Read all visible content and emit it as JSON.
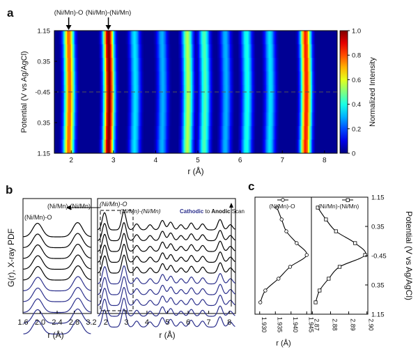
{
  "panel_labels": {
    "a": "a",
    "b": "b",
    "c": "c"
  },
  "chart_data": [
    {
      "panel": "a",
      "type": "heatmap",
      "xlabel": "r (Å)",
      "ylabel": "Potential (V vs Ag/AgCl)",
      "xlim": [
        1.6,
        8.3
      ],
      "x_ticks": [
        "2",
        "3",
        "4",
        "5",
        "6",
        "7",
        "8"
      ],
      "y_ticks": [
        "1.15",
        "0.35",
        "-0.45",
        "0.35",
        "1.15"
      ],
      "colorbar": {
        "label": "Normalized Intensity",
        "range": [
          0,
          1
        ],
        "ticks": [
          "1.0",
          "0.8",
          "0.6",
          "0.4",
          "0.2",
          "0"
        ]
      },
      "annotations": [
        {
          "text": "(Ni/Mn)-O",
          "x": 1.94
        },
        {
          "text": "(Ni/Mn)-(Ni/Mn)",
          "x": 2.88
        }
      ],
      "peaks": [
        {
          "r": 1.94,
          "intensity": 0.78
        },
        {
          "r": 2.88,
          "intensity": 1.0
        },
        {
          "r": 3.5,
          "intensity": 0.35
        },
        {
          "r": 4.15,
          "intensity": 0.3
        },
        {
          "r": 4.75,
          "intensity": 0.55
        },
        {
          "r": 5.15,
          "intensity": 0.45
        },
        {
          "r": 5.65,
          "intensity": 0.3
        },
        {
          "r": 6.15,
          "intensity": 0.4
        },
        {
          "r": 6.7,
          "intensity": 0.35
        },
        {
          "r": 7.55,
          "intensity": 0.85
        }
      ],
      "dashed_line_at": "-0.45"
    },
    {
      "panel": "b",
      "type": "line",
      "ylabel": "G(r), X-ray PDF",
      "inset": {
        "xlabel": "r (Å)",
        "xlim": [
          1.6,
          3.2
        ],
        "x_ticks": [
          "1.6",
          "2.0",
          "2.4",
          "2.8",
          "3.2"
        ],
        "labels": [
          "(Ni/Mn)-O",
          "(Ni/Mn)-(Ni/Mn)"
        ]
      },
      "main": {
        "xlabel": "r (Å)",
        "xlim": [
          1.6,
          8.3
        ],
        "x_ticks": [
          "2",
          "3",
          "4",
          "5",
          "6",
          "7",
          "8"
        ],
        "labels": [
          "(Ni/Mn)-O",
          "(Ni/Mn)-(Ni/Mn)"
        ],
        "scan_label": {
          "cathodic": "Cathodic",
          "to": "to",
          "anodic": "Anodic",
          "scan": "Scan"
        }
      },
      "series_colors": [
        "#000000",
        "#000000",
        "#000000",
        "#000000",
        "#000000",
        "#2b2f8c",
        "#2b2f8c",
        "#2b2f8c",
        "#2b2f8c",
        "#2b2f8c"
      ],
      "peaks": [
        {
          "r": 1.94,
          "height": 1.0
        },
        {
          "r": 2.88,
          "height": 1.05
        },
        {
          "r": 3.5,
          "height": 0.35
        },
        {
          "r": 4.15,
          "height": 0.3
        },
        {
          "r": 4.75,
          "height": 0.55
        },
        {
          "r": 5.15,
          "height": 0.45
        },
        {
          "r": 5.65,
          "height": 0.3
        },
        {
          "r": 6.15,
          "height": 0.4
        },
        {
          "r": 6.7,
          "height": 0.35
        },
        {
          "r": 7.55,
          "height": 0.6
        },
        {
          "r": 8.05,
          "height": 0.3
        }
      ]
    },
    {
      "panel": "c",
      "type": "scatter",
      "ylabel": "Potential (V vs Ag/AgCl)",
      "y_ticks": [
        "1.15",
        "0.35",
        "-0.45",
        "0.35",
        "1.15"
      ],
      "ni_o": {
        "legend": "(Ni/Mn)-O",
        "xlabel": "r (Å)",
        "xlim": [
          1.9285,
          1.9465
        ],
        "x_ticks": [
          "1.930",
          "1.935",
          "1.940",
          "1.945"
        ],
        "points": [
          {
            "x": 1.9355,
            "y_index": 0
          },
          {
            "x": 1.937,
            "y_index": 1
          },
          {
            "x": 1.9385,
            "y_index": 2
          },
          {
            "x": 1.9418,
            "y_index": 3
          },
          {
            "x": 1.945,
            "y_index": 4
          },
          {
            "x": 1.9397,
            "y_index": 5
          },
          {
            "x": 1.936,
            "y_index": 6
          },
          {
            "x": 1.9318,
            "y_index": 7
          },
          {
            "x": 1.9302,
            "y_index": 8
          }
        ]
      },
      "ni_ni": {
        "legend": "(Ni/Mn)-(Ni/Mn)",
        "xlim": [
          2.8695,
          2.9005
        ],
        "x_ticks": [
          "2.87",
          "2.88",
          "2.89",
          "2.90"
        ],
        "points": [
          {
            "x": 2.873,
            "y_index": 0
          },
          {
            "x": 2.8775,
            "y_index": 1
          },
          {
            "x": 2.883,
            "y_index": 2
          },
          {
            "x": 2.8935,
            "y_index": 3
          },
          {
            "x": 2.899,
            "y_index": 4
          },
          {
            "x": 2.885,
            "y_index": 5
          },
          {
            "x": 2.879,
            "y_index": 6
          },
          {
            "x": 2.874,
            "y_index": 7
          },
          {
            "x": 2.8718,
            "y_index": 8
          }
        ]
      }
    }
  ]
}
